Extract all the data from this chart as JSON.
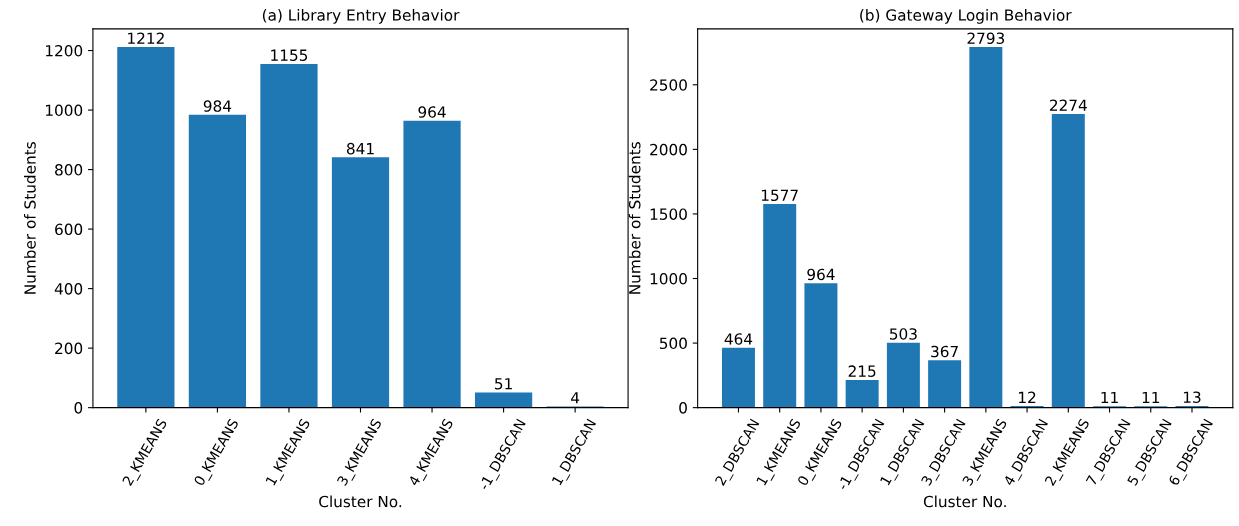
{
  "chart_data": [
    {
      "type": "bar",
      "title": "(a) Library Entry Behavior",
      "xlabel": "Cluster No.",
      "ylabel": "Number of Students",
      "categories": [
        "2_KMEANS",
        "0_KMEANS",
        "1_KMEANS",
        "3_KMEANS",
        "4_KMEANS",
        "-1_DBSCAN",
        "1_DBSCAN"
      ],
      "values": [
        1212,
        984,
        1155,
        841,
        964,
        51,
        4
      ],
      "color": "#1f77b4",
      "ylim": [
        0,
        1272.6
      ],
      "yticks": [
        0,
        200,
        400,
        600,
        800,
        1000,
        1200
      ],
      "data_labels": true,
      "grid": false,
      "legend": false
    },
    {
      "type": "bar",
      "title": "(b) Gateway Login Behavior",
      "xlabel": "Cluster No.",
      "ylabel": "Number of Students",
      "categories": [
        "2_DBSCAN",
        "1_KMEANS",
        "0_KMEANS",
        "-1_DBSCAN",
        "1_DBSCAN",
        "3_DBSCAN",
        "3_KMEANS",
        "4_DBSCAN",
        "2_KMEANS",
        "7_DBSCAN",
        "5_DBSCAN",
        "6_DBSCAN"
      ],
      "values": [
        464,
        1577,
        964,
        215,
        503,
        367,
        2793,
        12,
        2274,
        11,
        11,
        13
      ],
      "color": "#1f77b4",
      "ylim": [
        0,
        2932.6
      ],
      "yticks": [
        0,
        500,
        1000,
        1500,
        2000,
        2500
      ],
      "data_labels": true,
      "grid": false,
      "legend": false
    }
  ]
}
